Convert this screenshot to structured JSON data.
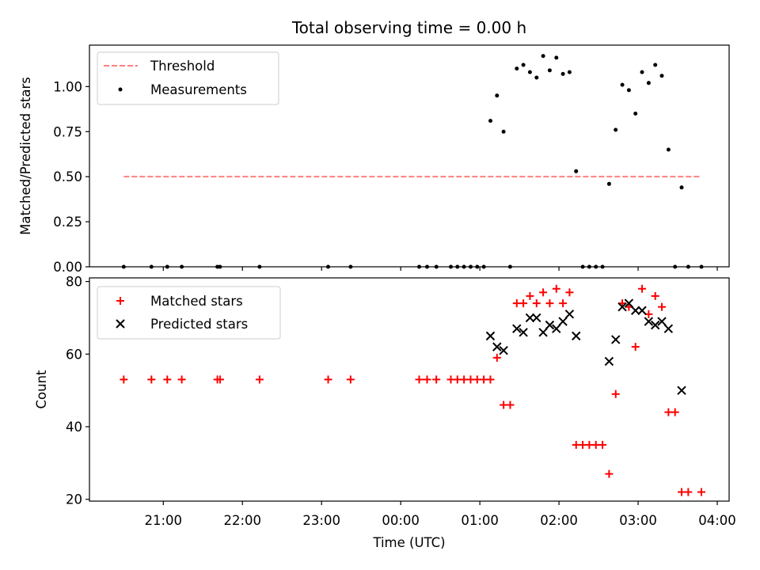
{
  "chart_data": [
    {
      "type": "scatter",
      "title": "Total observing time = 0.00 h",
      "xlabel": "",
      "ylabel": "Matched/Predicted stars",
      "ylim": [
        0,
        1.23
      ],
      "yticks": [
        "0.00",
        "0.25",
        "0.50",
        "0.75",
        "1.00"
      ],
      "grid": false,
      "legend_position": "top-left",
      "threshold": {
        "name": "Threshold",
        "value": 0.5,
        "x_range": [
          "20:30",
          "03:48"
        ],
        "color": "#ff8080",
        "style": "dashed"
      },
      "series": [
        {
          "name": "Measurements",
          "color": "#000000",
          "marker": "dot",
          "points": [
            [
              "20:30",
              0
            ],
            [
              "20:51",
              0
            ],
            [
              "21:03",
              0
            ],
            [
              "21:14",
              0
            ],
            [
              "21:41",
              0
            ],
            [
              "21:43",
              0
            ],
            [
              "22:13",
              0
            ],
            [
              "23:05",
              0
            ],
            [
              "23:22",
              0
            ],
            [
              "00:14",
              0
            ],
            [
              "00:20",
              0
            ],
            [
              "00:27",
              0
            ],
            [
              "00:38",
              0
            ],
            [
              "00:43",
              0
            ],
            [
              "00:48",
              0
            ],
            [
              "00:53",
              0
            ],
            [
              "00:58",
              0
            ],
            [
              "01:03",
              0
            ],
            [
              "01:08",
              0.81
            ],
            [
              "01:13",
              0.95
            ],
            [
              "01:18",
              0.75
            ],
            [
              "01:23",
              0
            ],
            [
              "01:28",
              1.1
            ],
            [
              "01:33",
              1.12
            ],
            [
              "01:38",
              1.08
            ],
            [
              "01:43",
              1.05
            ],
            [
              "01:48",
              1.17
            ],
            [
              "01:53",
              1.09
            ],
            [
              "01:58",
              1.16
            ],
            [
              "02:03",
              1.07
            ],
            [
              "02:08",
              1.08
            ],
            [
              "02:13",
              0.53
            ],
            [
              "02:18",
              0
            ],
            [
              "02:23",
              0
            ],
            [
              "02:28",
              0
            ],
            [
              "02:33",
              0
            ],
            [
              "02:38",
              0.46
            ],
            [
              "02:43",
              0.76
            ],
            [
              "02:48",
              1.01
            ],
            [
              "02:53",
              0.98
            ],
            [
              "02:58",
              0.85
            ],
            [
              "03:03",
              1.08
            ],
            [
              "03:08",
              1.02
            ],
            [
              "03:13",
              1.12
            ],
            [
              "03:18",
              1.06
            ],
            [
              "03:23",
              0.65
            ],
            [
              "03:28",
              0
            ],
            [
              "03:33",
              0.44
            ],
            [
              "03:38",
              0
            ],
            [
              "03:48",
              0
            ]
          ]
        }
      ]
    },
    {
      "type": "scatter",
      "title": "",
      "xlabel": "Time (UTC)",
      "ylabel": "Count",
      "ylim": [
        19.5,
        81
      ],
      "yticks": [
        "20",
        "40",
        "60",
        "80"
      ],
      "xticks": [
        "21:00",
        "22:00",
        "23:00",
        "00:00",
        "01:00",
        "02:00",
        "03:00",
        "04:00"
      ],
      "xlim": [
        "20:04",
        "04:09"
      ],
      "grid": false,
      "legend_position": "top-left",
      "series": [
        {
          "name": "Matched stars",
          "color": "#ff0000",
          "marker": "plus",
          "points": [
            [
              "20:30",
              53
            ],
            [
              "20:51",
              53
            ],
            [
              "21:03",
              53
            ],
            [
              "21:14",
              53
            ],
            [
              "21:41",
              53
            ],
            [
              "21:43",
              53
            ],
            [
              "22:13",
              53
            ],
            [
              "23:05",
              53
            ],
            [
              "23:22",
              53
            ],
            [
              "00:14",
              53
            ],
            [
              "00:20",
              53
            ],
            [
              "00:27",
              53
            ],
            [
              "00:38",
              53
            ],
            [
              "00:43",
              53
            ],
            [
              "00:48",
              53
            ],
            [
              "00:53",
              53
            ],
            [
              "00:58",
              53
            ],
            [
              "01:03",
              53
            ],
            [
              "01:08",
              53
            ],
            [
              "01:13",
              59
            ],
            [
              "01:18",
              46
            ],
            [
              "01:23",
              46
            ],
            [
              "01:28",
              74
            ],
            [
              "01:33",
              74
            ],
            [
              "01:38",
              76
            ],
            [
              "01:43",
              74
            ],
            [
              "01:48",
              77
            ],
            [
              "01:53",
              74
            ],
            [
              "01:58",
              78
            ],
            [
              "02:03",
              74
            ],
            [
              "02:08",
              77
            ],
            [
              "02:13",
              35
            ],
            [
              "02:18",
              35
            ],
            [
              "02:23",
              35
            ],
            [
              "02:28",
              35
            ],
            [
              "02:33",
              35
            ],
            [
              "02:38",
              27
            ],
            [
              "02:43",
              49
            ],
            [
              "02:48",
              74
            ],
            [
              "02:53",
              73
            ],
            [
              "02:58",
              62
            ],
            [
              "03:03",
              78
            ],
            [
              "03:08",
              71
            ],
            [
              "03:13",
              76
            ],
            [
              "03:18",
              73
            ],
            [
              "03:23",
              44
            ],
            [
              "03:28",
              44
            ],
            [
              "03:33",
              22
            ],
            [
              "03:38",
              22
            ],
            [
              "03:48",
              22
            ]
          ]
        },
        {
          "name": "Predicted stars",
          "color": "#000000",
          "marker": "x",
          "points": [
            [
              "01:08",
              65
            ],
            [
              "01:13",
              62
            ],
            [
              "01:18",
              61
            ],
            [
              "01:28",
              67
            ],
            [
              "01:33",
              66
            ],
            [
              "01:38",
              70
            ],
            [
              "01:43",
              70
            ],
            [
              "01:48",
              66
            ],
            [
              "01:53",
              68
            ],
            [
              "01:58",
              67
            ],
            [
              "02:03",
              69
            ],
            [
              "02:08",
              71
            ],
            [
              "02:13",
              65
            ],
            [
              "02:38",
              58
            ],
            [
              "02:43",
              64
            ],
            [
              "02:48",
              73
            ],
            [
              "02:53",
              74
            ],
            [
              "02:58",
              72
            ],
            [
              "03:03",
              72
            ],
            [
              "03:08",
              69
            ],
            [
              "03:13",
              68
            ],
            [
              "03:18",
              69
            ],
            [
              "03:23",
              67
            ],
            [
              "03:33",
              50
            ]
          ]
        }
      ]
    }
  ]
}
